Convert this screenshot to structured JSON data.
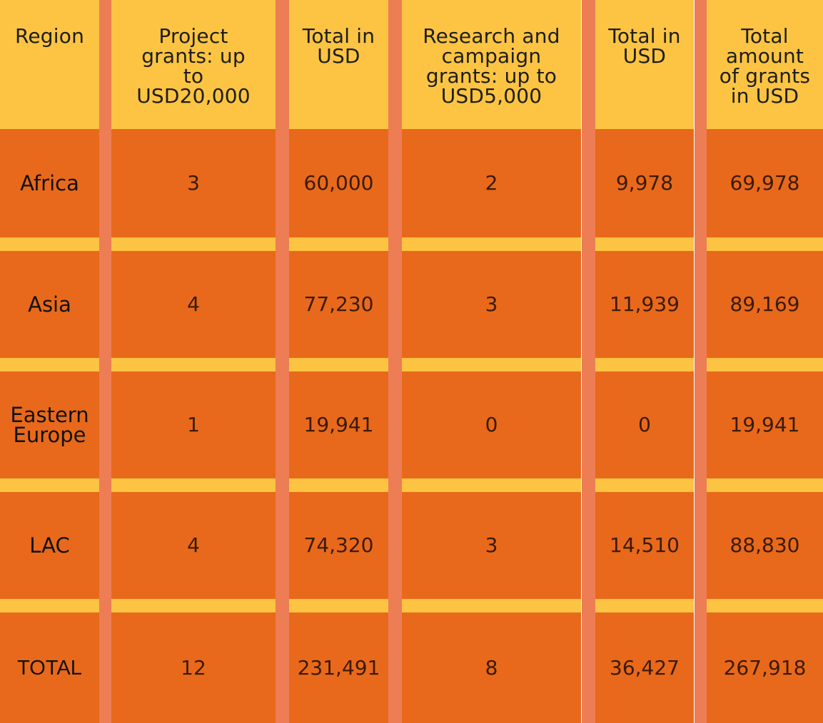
{
  "colors": {
    "header_bg": "#FCC442",
    "body_bg": "#E8691B",
    "gutter": "#ED7D55",
    "background": "#FFFFFF"
  },
  "table": {
    "headers": [
      [
        "Region"
      ],
      [
        "Project",
        "grants: up",
        "to",
        "USD20,000"
      ],
      [
        "Total in",
        "USD"
      ],
      [
        "Research and",
        "campaign",
        "grants: up to",
        "USD5,000"
      ],
      [
        "Total in",
        "USD"
      ],
      [
        "Total",
        "amount",
        "of grants",
        "in USD"
      ]
    ],
    "rows": [
      {
        "region": [
          "Africa"
        ],
        "cells": [
          "3",
          "60,000",
          "2",
          "9,978",
          "69,978"
        ]
      },
      {
        "region": [
          "Asia"
        ],
        "cells": [
          "4",
          "77,230",
          "3",
          "11,939",
          "89,169"
        ]
      },
      {
        "region": [
          "Eastern",
          "Europe"
        ],
        "cells": [
          "1",
          "19,941",
          "0",
          "0",
          "19,941"
        ]
      },
      {
        "region": [
          "LAC"
        ],
        "cells": [
          "4",
          "74,320",
          "3",
          "14,510",
          "88,830"
        ]
      },
      {
        "region": [
          "TOTAL"
        ],
        "cells": [
          "12",
          "231,491",
          "8",
          "36,427",
          "267,918"
        ]
      }
    ]
  }
}
